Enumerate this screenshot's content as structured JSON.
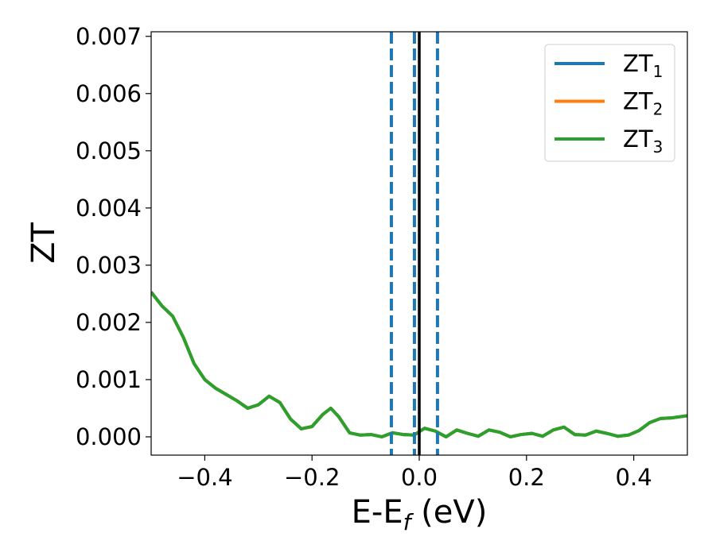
{
  "chart_data": {
    "type": "line",
    "x_label": {
      "main": "E-E",
      "sub": "f",
      "rest": " (eV)"
    },
    "y_label": "ZT",
    "x": [
      -0.5,
      -0.48,
      -0.46,
      -0.44,
      -0.42,
      -0.4,
      -0.38,
      -0.36,
      -0.34,
      -0.32,
      -0.3,
      -0.28,
      -0.26,
      -0.24,
      -0.22,
      -0.2,
      -0.18,
      -0.165,
      -0.15,
      -0.13,
      -0.11,
      -0.09,
      -0.07,
      -0.05,
      -0.03,
      -0.01,
      0.01,
      0.03,
      0.05,
      0.07,
      0.09,
      0.11,
      0.13,
      0.15,
      0.17,
      0.19,
      0.21,
      0.23,
      0.25,
      0.27,
      0.29,
      0.31,
      0.33,
      0.35,
      0.37,
      0.39,
      0.41,
      0.43,
      0.45,
      0.47,
      0.5
    ],
    "series": [
      {
        "name": "ZT",
        "subscript": "1",
        "color": "#1f77b4",
        "values": [
          0.00253,
          0.00229,
          0.00211,
          0.00174,
          0.00128,
          0.001,
          0.00085,
          0.00074,
          0.00063,
          0.0005,
          0.00056,
          0.00071,
          0.0006,
          0.00031,
          0.00014,
          0.00018,
          0.00039,
          0.0005,
          0.00035,
          7e-05,
          3e-05,
          4e-05,
          0.0,
          7e-05,
          4e-05,
          3e-05,
          0.00015,
          0.0001,
          0.0,
          0.00012,
          6e-05,
          1e-05,
          0.00012,
          8e-05,
          0.0,
          4e-05,
          6e-05,
          1e-05,
          0.00012,
          0.00017,
          4e-05,
          3e-05,
          0.0001,
          6e-05,
          1e-05,
          3e-05,
          0.00011,
          0.00025,
          0.00032,
          0.00033,
          0.00037
        ]
      },
      {
        "name": "ZT",
        "subscript": "2",
        "color": "#ff7f0e",
        "values": [
          0.00253,
          0.00229,
          0.00211,
          0.00174,
          0.00128,
          0.001,
          0.00085,
          0.00074,
          0.00063,
          0.0005,
          0.00056,
          0.00071,
          0.0006,
          0.00031,
          0.00014,
          0.00018,
          0.00039,
          0.0005,
          0.00035,
          7e-05,
          3e-05,
          4e-05,
          0.0,
          7e-05,
          4e-05,
          3e-05,
          0.00015,
          0.0001,
          0.0,
          0.00012,
          6e-05,
          1e-05,
          0.00012,
          8e-05,
          0.0,
          4e-05,
          6e-05,
          1e-05,
          0.00012,
          0.00017,
          4e-05,
          3e-05,
          0.0001,
          6e-05,
          1e-05,
          3e-05,
          0.00011,
          0.00025,
          0.00032,
          0.00033,
          0.00037
        ]
      },
      {
        "name": "ZT",
        "subscript": "3",
        "color": "#2ca02c",
        "values": [
          0.00253,
          0.00229,
          0.00211,
          0.00174,
          0.00128,
          0.001,
          0.00085,
          0.00074,
          0.00063,
          0.0005,
          0.00056,
          0.00071,
          0.0006,
          0.00031,
          0.00014,
          0.00018,
          0.00039,
          0.0005,
          0.00035,
          7e-05,
          3e-05,
          4e-05,
          0.0,
          7e-05,
          4e-05,
          3e-05,
          0.00015,
          0.0001,
          0.0,
          0.00012,
          6e-05,
          1e-05,
          0.00012,
          8e-05,
          0.0,
          4e-05,
          6e-05,
          1e-05,
          0.00012,
          0.00017,
          4e-05,
          3e-05,
          0.0001,
          6e-05,
          1e-05,
          3e-05,
          0.00011,
          0.00025,
          0.00032,
          0.00033,
          0.00037
        ]
      }
    ],
    "vlines": [
      {
        "x": -0.052,
        "color": "#1f77b4",
        "style": "dashed"
      },
      {
        "x": -0.009,
        "color": "#1f77b4",
        "style": "dashed"
      },
      {
        "x": 0.034,
        "color": "#1f77b4",
        "style": "dashed"
      },
      {
        "x": 0,
        "color": "#000000",
        "style": "solid"
      }
    ],
    "xlim": [
      -0.5,
      0.5
    ],
    "ylim": [
      -0.00032,
      0.00708
    ],
    "xticks": [
      {
        "value": -0.4,
        "label": "−0.4"
      },
      {
        "value": -0.2,
        "label": "−0.2"
      },
      {
        "value": 0,
        "label": "0.0"
      },
      0.2,
      0.4
    ],
    "yticks": [
      {
        "value": 0,
        "label": "0.000"
      },
      {
        "value": 0.001,
        "label": "0.001"
      },
      {
        "value": 0.002,
        "label": "0.002"
      },
      {
        "value": 0.003,
        "label": "0.003"
      },
      {
        "value": 0.004,
        "label": "0.004"
      },
      {
        "value": 0.005,
        "label": "0.005"
      },
      {
        "value": 0.006,
        "label": "0.006"
      },
      {
        "value": 0.007,
        "label": "0.007"
      }
    ],
    "legend": "upper right",
    "grid": false
  }
}
